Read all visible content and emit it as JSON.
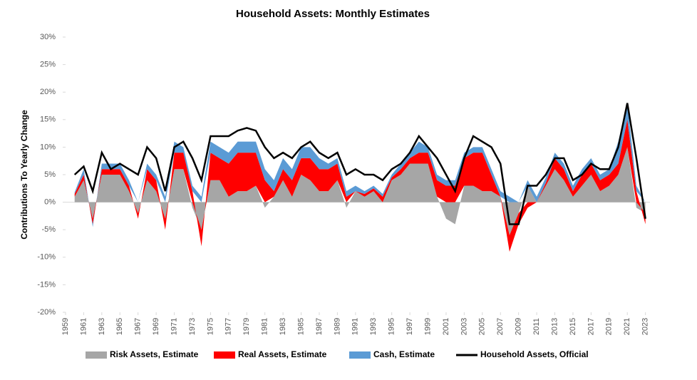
{
  "chart_data": {
    "type": "stacked-area-line",
    "title": "Household Assets: Monthly Estimates",
    "ylabel": "Contributions To Yearly Change",
    "x": [
      1960,
      1961,
      1962,
      1963,
      1964,
      1965,
      1966,
      1967,
      1968,
      1969,
      1970,
      1971,
      1972,
      1973,
      1974,
      1975,
      1976,
      1977,
      1978,
      1979,
      1980,
      1981,
      1982,
      1983,
      1984,
      1985,
      1986,
      1987,
      1988,
      1989,
      1990,
      1991,
      1992,
      1993,
      1994,
      1995,
      1996,
      1997,
      1998,
      1999,
      2000,
      2001,
      2002,
      2003,
      2004,
      2005,
      2006,
      2007,
      2008,
      2009,
      2010,
      2011,
      2012,
      2013,
      2014,
      2015,
      2016,
      2017,
      2018,
      2019,
      2020,
      2021,
      2022,
      2023
    ],
    "series": [
      {
        "name": "Risk Assets, Estimate",
        "color": "#a6a6a6",
        "kind": "area",
        "values": [
          1,
          4,
          -3,
          5,
          5,
          5,
          2,
          -2,
          4,
          2,
          -3,
          6,
          6,
          -1,
          -5,
          4,
          4,
          1,
          2,
          2,
          3,
          -1,
          1,
          4,
          1,
          5,
          4,
          2,
          2,
          4,
          -1,
          2,
          1,
          2,
          0,
          4,
          5,
          7,
          7,
          7,
          1,
          -3,
          -4,
          3,
          3,
          2,
          2,
          1,
          -6,
          -2,
          3,
          0,
          3,
          6,
          4,
          1,
          3,
          5,
          2,
          3,
          5,
          10,
          -1,
          -2
        ]
      },
      {
        "name": "Real Assets, Estimate",
        "color": "#ff0000",
        "kind": "area",
        "values": [
          0.5,
          1,
          -1,
          1,
          1,
          1,
          1,
          -1,
          2,
          2,
          -2,
          3,
          3,
          2,
          -3,
          5,
          4,
          6,
          7,
          7,
          6,
          4,
          1,
          2,
          3,
          3,
          4,
          4,
          4,
          3,
          1,
          0,
          0.5,
          0.5,
          1,
          0.5,
          1,
          1,
          2,
          2,
          3,
          3,
          3,
          5,
          6,
          7,
          3,
          0,
          -3,
          -2,
          -1,
          0,
          0.5,
          2,
          2,
          1,
          2,
          2,
          2,
          2,
          2,
          5,
          2,
          -2
        ]
      },
      {
        "name": "Cash, Estimate",
        "color": "#5b9bd5",
        "kind": "area",
        "values": [
          0.3,
          1,
          -0.5,
          1,
          1,
          1,
          1,
          0,
          1,
          1,
          1,
          2,
          1,
          1,
          1,
          2,
          2,
          2,
          2,
          2,
          2,
          2,
          2,
          2,
          2,
          2,
          2,
          2,
          1,
          1,
          1,
          1,
          0.5,
          0.5,
          0.5,
          0.5,
          1,
          1,
          2,
          1,
          1,
          1,
          1,
          1,
          1,
          1,
          1,
          1,
          1,
          0,
          1,
          1,
          1,
          1,
          1,
          1,
          1,
          1,
          1,
          1,
          4,
          3,
          1,
          0
        ]
      },
      {
        "name": "Household Assets, Official",
        "color": "#000000",
        "kind": "line",
        "values": [
          5,
          6.5,
          2,
          9,
          6,
          7,
          6,
          5,
          10,
          8,
          2,
          10,
          11,
          8,
          4,
          12,
          12,
          12,
          13,
          13.5,
          13,
          10,
          8,
          9,
          8,
          10,
          11,
          9,
          8,
          9,
          5,
          6,
          5,
          5,
          4,
          6,
          7,
          9,
          12,
          10,
          8,
          5,
          2,
          8,
          12,
          11,
          10,
          7,
          -4,
          -4,
          3,
          3,
          5,
          8,
          8,
          4,
          5,
          7,
          6,
          6,
          10,
          18,
          8,
          -3
        ]
      }
    ],
    "xlim": [
      1959,
      2023.5
    ],
    "xticks": [
      1959,
      1961,
      1963,
      1965,
      1967,
      1969,
      1971,
      1973,
      1975,
      1977,
      1979,
      1981,
      1983,
      1985,
      1987,
      1989,
      1991,
      1993,
      1995,
      1997,
      1999,
      2001,
      2003,
      2005,
      2007,
      2009,
      2011,
      2013,
      2015,
      2017,
      2019,
      2021,
      2023
    ],
    "ylim": [
      -20,
      30
    ],
    "yticks": [
      {
        "value": -20,
        "label": "-20%"
      },
      {
        "value": -15,
        "label": "-15%"
      },
      {
        "value": -10,
        "label": "-10%"
      },
      {
        "value": -5,
        "label": "-5%"
      },
      {
        "value": 0,
        "label": "0%"
      },
      {
        "value": 5,
        "label": "5%"
      },
      {
        "value": 10,
        "label": "10%"
      },
      {
        "value": 15,
        "label": "15%"
      },
      {
        "value": 20,
        "label": "20%"
      },
      {
        "value": 25,
        "label": "25%"
      },
      {
        "value": 30,
        "label": "30%"
      }
    ]
  }
}
